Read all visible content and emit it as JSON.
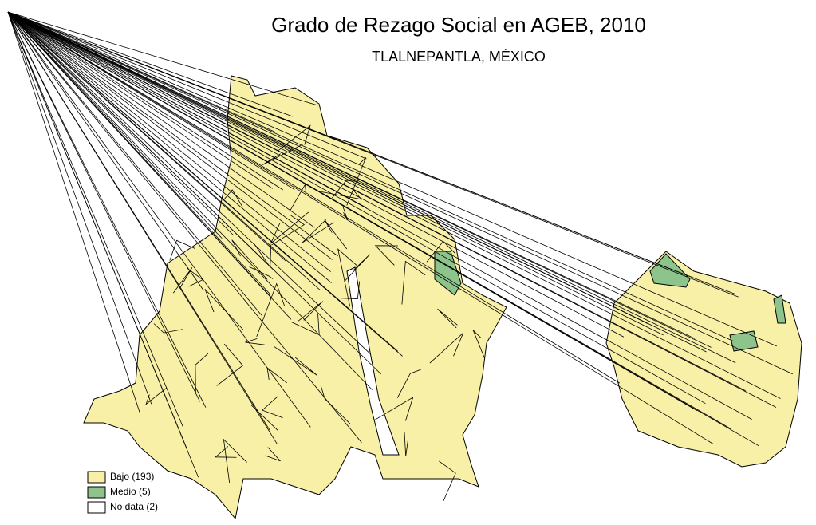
{
  "title": "Grado de Rezago Social en AGEB, 2010",
  "subtitle": "TLALNEPANTLA, MÉXICO",
  "legend": [
    {
      "label": "Bajo (193)",
      "color": "#f7f0a6"
    },
    {
      "label": "Medio (5)",
      "color": "#8cc48c"
    },
    {
      "label": "No data (2)",
      "color": "#ffffff"
    }
  ]
}
